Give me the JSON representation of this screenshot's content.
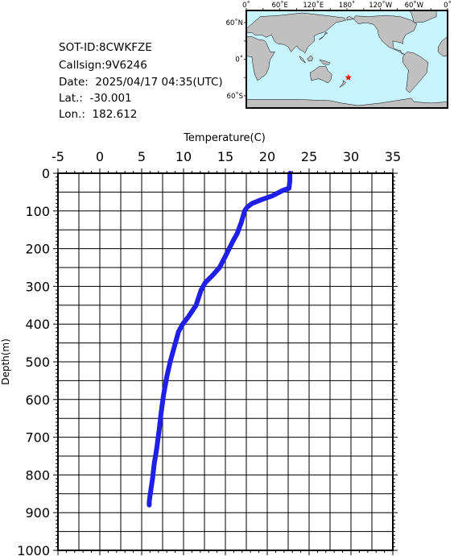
{
  "station": {
    "sot_id": "SOT-ID:8CWKFZE",
    "callsign": "Callsign:9V6246",
    "date": "Date:  2025/04/17 04:35(UTC)",
    "lat": "Lat.:  -30.001",
    "lon": "Lon.:  182.612"
  },
  "map": {
    "lon_labels": [
      "0˚",
      "60˚E",
      "120˚E",
      "180˚",
      "120˚W",
      "60˚W",
      "0˚"
    ],
    "lat_labels": [
      "60˚N",
      "0˚",
      "60˚S"
    ],
    "ocean_color": "#c8f4ff",
    "land_color": "#c0c0c0",
    "marker_color": "#ff0000",
    "marker": {
      "lon": 182.612,
      "lat": -30.001
    }
  },
  "chart_data": {
    "type": "line",
    "title": "",
    "xlabel": "Temperature(C)",
    "ylabel": "Depth(m)",
    "xlim": [
      -5,
      35
    ],
    "ylim": [
      0,
      1000
    ],
    "y_inverted": true,
    "x_ticks": [
      -5,
      0,
      5,
      10,
      15,
      20,
      25,
      30,
      35
    ],
    "y_ticks": [
      0,
      100,
      200,
      300,
      400,
      500,
      600,
      700,
      800,
      900,
      1000
    ],
    "grid": true,
    "line_color": "#1f1fe8",
    "series": [
      {
        "x": [
          22.7,
          22.7,
          22.6,
          21.9,
          20.6,
          19.3,
          18.2,
          17.6,
          17.3,
          16.9,
          16.4,
          15.9,
          15.0,
          14.3,
          13.5,
          12.6,
          12.1,
          11.5,
          10.6,
          9.9,
          9.4,
          8.9,
          8.4,
          8.0,
          7.6,
          7.3,
          7.1,
          6.8,
          6.5,
          6.3,
          6.1,
          5.9,
          5.9
        ],
        "y": [
          0,
          20,
          40,
          45,
          60,
          70,
          80,
          90,
          100,
          130,
          160,
          180,
          220,
          250,
          270,
          290,
          310,
          350,
          380,
          400,
          420,
          460,
          500,
          540,
          590,
          640,
          680,
          730,
          770,
          810,
          840,
          870,
          880
        ]
      }
    ]
  }
}
